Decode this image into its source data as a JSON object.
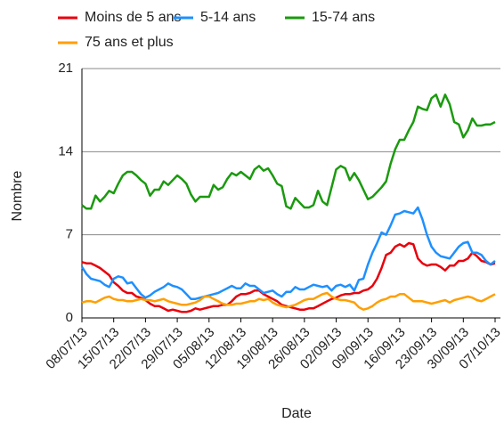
{
  "chart_data": {
    "type": "line",
    "x_label": "Date",
    "y_label": "Nombre",
    "categories": [
      "08/07/13",
      null,
      null,
      null,
      null,
      null,
      null,
      "15/07/13",
      null,
      null,
      null,
      null,
      null,
      null,
      "22/07/13",
      null,
      null,
      null,
      null,
      null,
      null,
      "29/07/13",
      null,
      null,
      null,
      null,
      null,
      null,
      "05/08/13",
      null,
      null,
      null,
      null,
      null,
      null,
      "12/08/13",
      null,
      null,
      null,
      null,
      null,
      null,
      "19/08/13",
      null,
      null,
      null,
      null,
      null,
      null,
      "26/08/13",
      null,
      null,
      null,
      null,
      null,
      null,
      "02/09/13",
      null,
      null,
      null,
      null,
      null,
      null,
      "09/09/13",
      null,
      null,
      null,
      null,
      null,
      null,
      "16/09/13",
      null,
      null,
      null,
      null,
      null,
      null,
      "23/09/13",
      null,
      null,
      null,
      null,
      null,
      null,
      "30/09/13",
      null,
      null,
      null,
      null,
      null,
      null,
      "07/10/13"
    ],
    "ylim": [
      0,
      21
    ],
    "yticks": [
      0,
      7,
      14,
      21
    ],
    "grid": true,
    "series": [
      {
        "name": "Moins de 5 ans",
        "color": "#e8000b",
        "values": [
          4.7,
          4.6,
          4.6,
          4.4,
          4.2,
          3.9,
          3.6,
          3.0,
          2.7,
          2.3,
          2.1,
          2.1,
          1.8,
          1.7,
          1.5,
          1.2,
          1.0,
          1.0,
          0.8,
          0.6,
          0.7,
          0.6,
          0.5,
          0.5,
          0.6,
          0.8,
          0.7,
          0.8,
          0.9,
          1.0,
          1.0,
          1.1,
          1.1,
          1.4,
          1.8,
          2.0,
          2.0,
          2.1,
          2.3,
          2.3,
          2.0,
          1.8,
          1.6,
          1.4,
          1.1,
          1.0,
          0.9,
          0.8,
          0.7,
          0.7,
          0.8,
          0.8,
          1.0,
          1.2,
          1.4,
          1.6,
          1.7,
          1.9,
          2.0,
          2.0,
          2.1,
          2.1,
          2.3,
          2.4,
          2.7,
          3.3,
          4.2,
          5.3,
          5.5,
          6.0,
          6.2,
          6.0,
          6.3,
          6.2,
          5.0,
          4.6,
          4.4,
          4.5,
          4.5,
          4.3,
          4.0,
          4.4,
          4.4,
          4.8,
          4.8,
          5.0,
          5.5,
          5.2,
          4.8,
          4.7,
          4.5,
          4.6
        ]
      },
      {
        "name": "5-14 ans",
        "color": "#1e90ff",
        "values": [
          4.3,
          3.7,
          3.3,
          3.2,
          3.1,
          2.8,
          2.6,
          3.3,
          3.5,
          3.4,
          2.9,
          3.0,
          2.5,
          2.0,
          1.7,
          1.9,
          2.2,
          2.4,
          2.6,
          2.9,
          2.7,
          2.6,
          2.4,
          2.0,
          1.6,
          1.6,
          1.7,
          1.8,
          1.9,
          2.0,
          2.1,
          2.3,
          2.5,
          2.7,
          2.5,
          2.5,
          2.9,
          2.7,
          2.7,
          2.4,
          2.1,
          2.2,
          2.3,
          2.0,
          1.8,
          2.2,
          2.2,
          2.6,
          2.4,
          2.4,
          2.6,
          2.8,
          2.7,
          2.6,
          2.7,
          2.3,
          2.7,
          2.8,
          2.6,
          2.8,
          2.3,
          3.2,
          3.3,
          4.5,
          5.5,
          6.3,
          7.2,
          7.0,
          7.8,
          8.7,
          8.8,
          9.0,
          8.9,
          8.8,
          9.3,
          8.3,
          7.0,
          6.0,
          5.5,
          5.2,
          5.1,
          5.0,
          5.5,
          6.0,
          6.3,
          6.4,
          5.5,
          5.5,
          5.3,
          4.8,
          4.5,
          4.8
        ]
      },
      {
        "name": "15-74 ans",
        "color": "#1a9a0e",
        "values": [
          9.5,
          9.2,
          9.2,
          10.3,
          9.8,
          10.2,
          10.7,
          10.5,
          11.3,
          12.0,
          12.3,
          12.3,
          12.0,
          11.6,
          11.3,
          10.3,
          10.8,
          10.8,
          11.5,
          11.2,
          11.6,
          12.0,
          11.7,
          11.3,
          10.4,
          9.8,
          10.2,
          10.2,
          10.2,
          11.2,
          10.8,
          11.0,
          11.7,
          12.2,
          12.0,
          12.3,
          12.0,
          11.7,
          12.5,
          12.8,
          12.4,
          12.6,
          12.0,
          11.3,
          11.1,
          9.4,
          9.2,
          10.1,
          9.7,
          9.3,
          9.3,
          9.5,
          10.7,
          9.8,
          9.5,
          11.0,
          12.5,
          12.8,
          12.6,
          11.6,
          12.2,
          11.6,
          10.8,
          10.0,
          10.2,
          10.6,
          11.0,
          11.5,
          13.0,
          14.2,
          15.0,
          15.0,
          15.8,
          16.5,
          17.8,
          17.6,
          17.5,
          18.5,
          18.8,
          17.8,
          18.8,
          18.0,
          16.5,
          16.3,
          15.2,
          15.8,
          16.8,
          16.2,
          16.2,
          16.3,
          16.3,
          16.5
        ]
      },
      {
        "name": "75 ans et plus",
        "color": "#ff9f00",
        "values": [
          1.3,
          1.4,
          1.4,
          1.3,
          1.5,
          1.7,
          1.8,
          1.6,
          1.5,
          1.5,
          1.4,
          1.4,
          1.5,
          1.6,
          1.5,
          1.5,
          1.4,
          1.5,
          1.6,
          1.4,
          1.3,
          1.2,
          1.1,
          1.1,
          1.2,
          1.3,
          1.5,
          1.8,
          1.8,
          1.6,
          1.4,
          1.2,
          1.1,
          1.1,
          1.2,
          1.2,
          1.3,
          1.4,
          1.4,
          1.6,
          1.5,
          1.6,
          1.3,
          1.1,
          1.0,
          0.9,
          1.0,
          1.1,
          1.3,
          1.5,
          1.6,
          1.6,
          1.8,
          2.0,
          2.1,
          1.8,
          1.6,
          1.5,
          1.5,
          1.4,
          1.3,
          0.9,
          0.7,
          0.8,
          1.0,
          1.3,
          1.5,
          1.6,
          1.8,
          1.8,
          2.0,
          2.0,
          1.7,
          1.4,
          1.4,
          1.4,
          1.3,
          1.2,
          1.3,
          1.4,
          1.5,
          1.3,
          1.5,
          1.6,
          1.7,
          1.8,
          1.7,
          1.5,
          1.4,
          1.6,
          1.8,
          2.0
        ]
      }
    ]
  }
}
